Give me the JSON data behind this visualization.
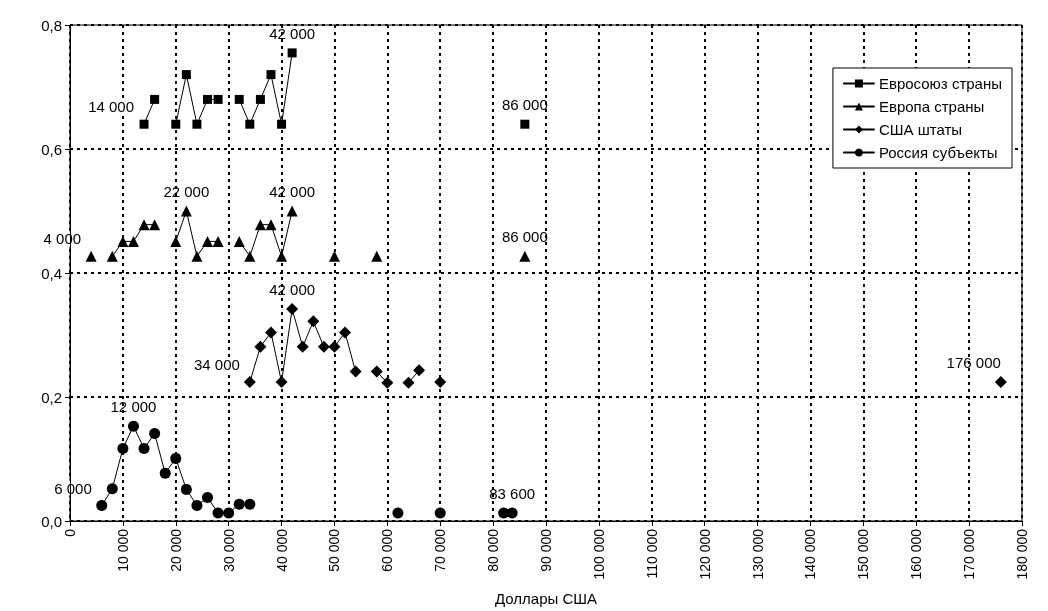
{
  "chart_data": {
    "type": "line",
    "xlabel": "Доллары США",
    "xlim": [
      0,
      180000
    ],
    "xticks": [
      0,
      {
        "value": 10000,
        "label": "10 000"
      },
      {
        "value": 20000,
        "label": "20 000"
      },
      {
        "value": 30000,
        "label": "30 000"
      },
      {
        "value": 40000,
        "label": "40 000"
      },
      {
        "value": 50000,
        "label": "50 000"
      },
      {
        "value": 60000,
        "label": "60 000"
      },
      {
        "value": 70000,
        "label": "70 000"
      },
      {
        "value": 80000,
        "label": "80 000"
      },
      {
        "value": 90000,
        "label": "90 000"
      },
      {
        "value": 100000,
        "label": "100 000"
      },
      {
        "value": 110000,
        "label": "110 000"
      },
      {
        "value": 120000,
        "label": "120 000"
      },
      {
        "value": 130000,
        "label": "130 000"
      },
      {
        "value": 140000,
        "label": "140 000"
      },
      {
        "value": 150000,
        "label": "150 000"
      },
      {
        "value": 160000,
        "label": "160 000"
      },
      {
        "value": 170000,
        "label": "170 000"
      },
      {
        "value": 180000,
        "label": "180 000"
      }
    ],
    "ylim": [
      0,
      0.8
    ],
    "yticks": [
      {
        "value": 0,
        "label": "0,0"
      },
      {
        "value": 0.2,
        "label": "0,2"
      },
      {
        "value": 0.4,
        "label": "0,4"
      },
      {
        "value": 0.6,
        "label": "0,6"
      },
      {
        "value": 0.8,
        "label": "0,8"
      }
    ],
    "grid": true,
    "legend": "top right",
    "line_style": "solid",
    "series": [
      {
        "name": "Евросоюз страны",
        "color": "#000000",
        "marker": "square",
        "x": [
          14000,
          16000,
          18000,
          20000,
          22000,
          24000,
          26000,
          28000,
          30000,
          32000,
          34000,
          36000,
          38000,
          40000,
          42000,
          64000,
          86000
        ],
        "values": [
          0.64,
          0.68,
          null,
          0.64,
          0.72,
          0.64,
          0.68,
          0.68,
          null,
          0.68,
          0.64,
          0.68,
          0.72,
          0.64,
          0.755,
          null,
          0.64
        ]
      },
      {
        "name": "Европа страны",
        "color": "#000000",
        "marker": "triangle",
        "x": [
          4000,
          6000,
          8000,
          10000,
          12000,
          14000,
          16000,
          18000,
          20000,
          22000,
          24000,
          26000,
          28000,
          30000,
          32000,
          34000,
          36000,
          38000,
          40000,
          42000,
          46000,
          50000,
          54000,
          58000,
          72000,
          86000
        ],
        "values": [
          0.427,
          null,
          0.427,
          0.451,
          0.451,
          0.478,
          0.478,
          null,
          0.451,
          0.5,
          0.427,
          0.451,
          0.451,
          null,
          0.451,
          0.427,
          0.478,
          0.478,
          0.427,
          0.5,
          null,
          0.427,
          null,
          0.427,
          null,
          0.427
        ]
      },
      {
        "name": "США штаты",
        "color": "#000000",
        "marker": "diamond",
        "x": [
          34000,
          36000,
          38000,
          40000,
          42000,
          44000,
          46000,
          48000,
          50000,
          52000,
          54000,
          56000,
          58000,
          60000,
          62000,
          64000,
          66000,
          68000,
          70000,
          120000,
          176000
        ],
        "values": [
          0.224,
          0.281,
          0.304,
          0.224,
          0.342,
          0.281,
          0.322,
          0.281,
          0.281,
          0.304,
          0.241,
          null,
          0.241,
          0.223,
          null,
          0.223,
          0.243,
          null,
          0.224,
          null,
          0.224
        ]
      },
      {
        "name": "Россия субъекты",
        "color": "#000000",
        "marker": "circle",
        "x": [
          6000,
          8000,
          10000,
          12000,
          14000,
          16000,
          18000,
          20000,
          22000,
          24000,
          26000,
          28000,
          30000,
          32000,
          34000,
          48000,
          62000,
          66000,
          70000,
          76000,
          82000,
          83600
        ],
        "values": [
          0.025,
          0.052,
          0.117,
          0.153,
          0.117,
          0.141,
          0.077,
          0.101,
          0.051,
          0.025,
          0.038,
          0.013,
          0.013,
          0.027,
          0.027,
          null,
          0.013,
          null,
          0.013,
          null,
          0.013,
          0.013
        ]
      }
    ],
    "annotations": [
      {
        "text": "14 000",
        "x": 14000,
        "y": 0.64
      },
      {
        "text": "42 000",
        "x": 42000,
        "y": 0.755
      },
      {
        "text": "86 000",
        "x": 86000,
        "y": 0.64
      },
      {
        "text": "4 000",
        "x": 4000,
        "y": 0.427
      },
      {
        "text": "22 000",
        "x": 22000,
        "y": 0.5
      },
      {
        "text": "42 000",
        "x": 42000,
        "y": 0.5
      },
      {
        "text": "86 000",
        "x": 86000,
        "y": 0.427
      },
      {
        "text": "34 000",
        "x": 34000,
        "y": 0.224
      },
      {
        "text": "42 000",
        "x": 42000,
        "y": 0.342
      },
      {
        "text": "176 000",
        "x": 176000,
        "y": 0.224
      },
      {
        "text": "6 000",
        "x": 6000,
        "y": 0.025
      },
      {
        "text": "12 000",
        "x": 12000,
        "y": 0.153
      },
      {
        "text": "83 600",
        "x": 83600,
        "y": 0.013
      }
    ]
  }
}
